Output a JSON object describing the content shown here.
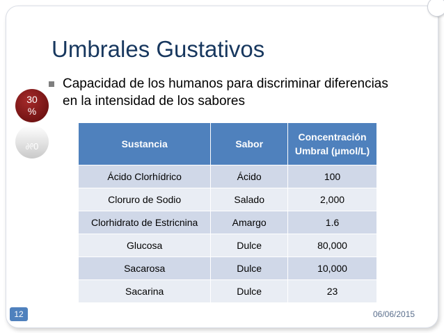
{
  "slide": {
    "title": "Umbrales Gustativos",
    "bullet": "Capacidad de los humanos para discriminar diferencias en la intensidad de los sabores",
    "badge": {
      "line1": "30",
      "line2": "%"
    },
    "badge_reflection": "%0",
    "page_number": "12",
    "date": "06/06/2015",
    "accent_color": "#4f81bd"
  },
  "table": {
    "headers": [
      "Sustancia",
      "Sabor",
      "Concentración Umbral (μmol/L)"
    ],
    "rows": [
      [
        "Ácido Clorhídrico",
        "Ácido",
        "100"
      ],
      [
        "Cloruro de Sodio",
        "Salado",
        "2,000"
      ],
      [
        "Clorhidrato de Estricnina",
        "Amargo",
        "1.6"
      ],
      [
        "Glucosa",
        "Dulce",
        "80,000"
      ],
      [
        "Sacarosa",
        "Dulce",
        "10,000"
      ],
      [
        "Sacarina",
        "Dulce",
        "23"
      ]
    ]
  }
}
